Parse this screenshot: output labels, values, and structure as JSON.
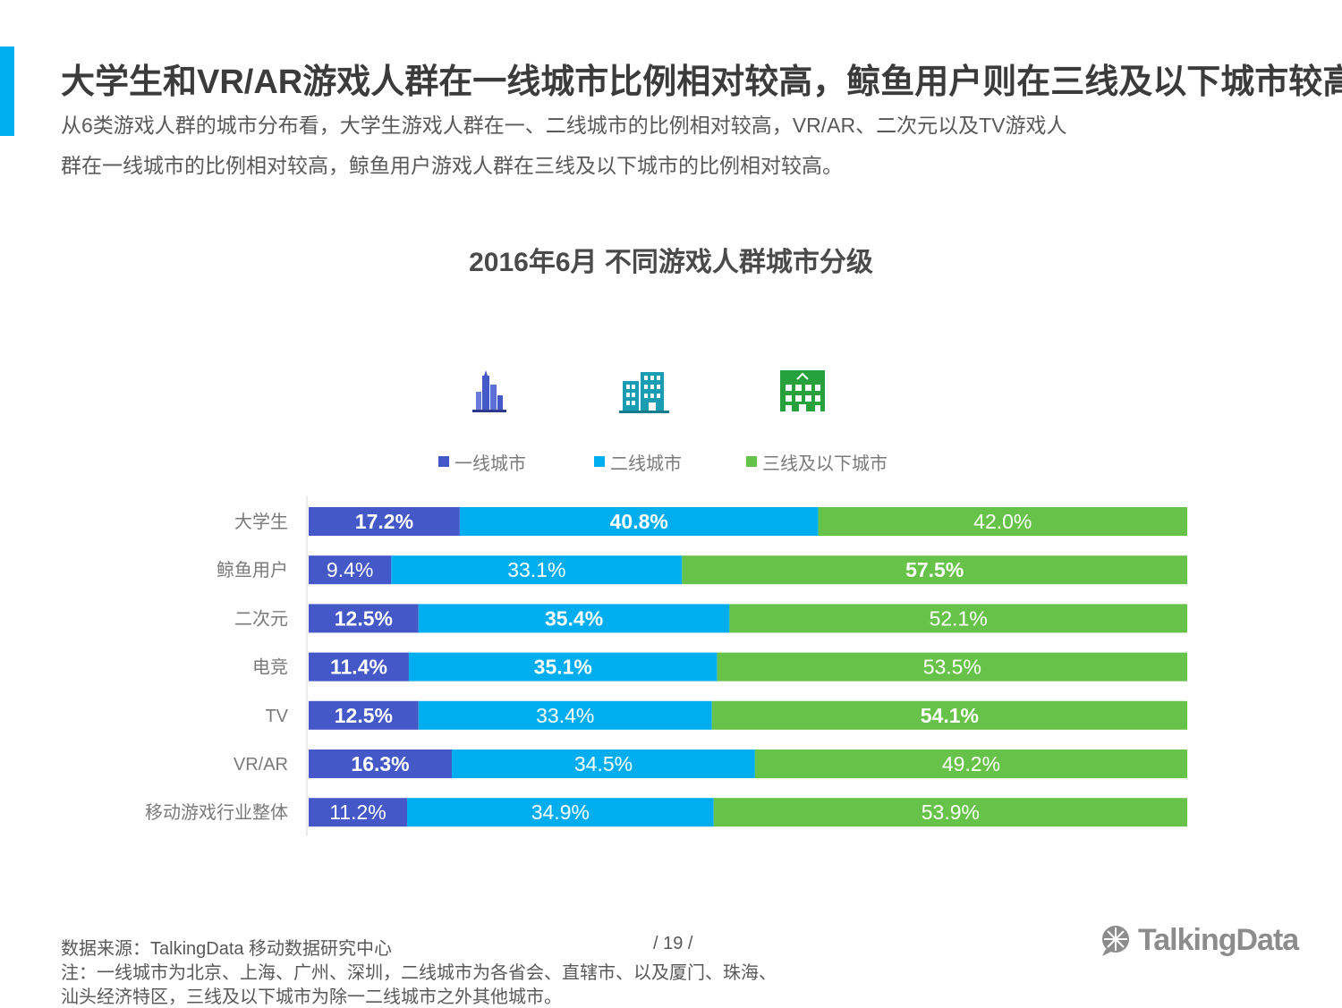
{
  "header": {
    "title": "大学生和VR/AR游戏人群在一线城市比例相对较高，鲸鱼用户则在三线及以下城市较高",
    "subtitle_line1": "从6类游戏人群的城市分布看，大学生游戏人群在一、二线城市的比例相对较高，VR/AR、二次元以及TV游戏人",
    "subtitle_line2": "群在一线城市的比例相对较高，鲸鱼用户游戏人群在三线及以下城市的比例相对较高。"
  },
  "icons": [
    {
      "name": "tier1-city-icon",
      "color": "#4458c7"
    },
    {
      "name": "tier2-city-icon",
      "color": "#1a9db3"
    },
    {
      "name": "tier3-city-icon",
      "color": "#27a13b"
    }
  ],
  "colors": {
    "tier1": "#4458c7",
    "tier2": "#00aeef",
    "tier3": "#66c248",
    "accent": "#00aeef"
  },
  "chart_data": {
    "type": "bar",
    "orientation": "horizontal",
    "stacked": true,
    "title": "2016年6月 不同游戏人群城市分级",
    "categories": [
      "大学生",
      "鲸鱼用户",
      "二次元",
      "电竞",
      "TV",
      "VR/AR",
      "移动游戏行业整体"
    ],
    "series": [
      {
        "name": "一线城市",
        "values": [
          17.2,
          9.4,
          12.5,
          11.4,
          12.5,
          16.3,
          11.2
        ],
        "labels": [
          "17.2%",
          "9.4%",
          "12.5%",
          "11.4%",
          "12.5%",
          "16.3%",
          "11.2%"
        ],
        "bold": [
          true,
          false,
          true,
          true,
          true,
          true,
          false
        ]
      },
      {
        "name": "二线城市",
        "values": [
          40.8,
          33.1,
          35.4,
          35.1,
          33.4,
          34.5,
          34.9
        ],
        "labels": [
          "40.8%",
          "33.1%",
          "35.4%",
          "35.1%",
          "33.4%",
          "34.5%",
          "34.9%"
        ],
        "bold": [
          true,
          false,
          true,
          true,
          false,
          false,
          false
        ]
      },
      {
        "name": "三线及以下城市",
        "values": [
          42.0,
          57.5,
          52.1,
          53.5,
          54.1,
          49.2,
          53.9
        ],
        "labels": [
          "42.0%",
          "57.5%",
          "52.1%",
          "53.5%",
          "54.1%",
          "49.2%",
          "53.9%"
        ],
        "bold": [
          false,
          true,
          false,
          false,
          true,
          false,
          false
        ]
      }
    ],
    "xlim": [
      0,
      100
    ],
    "legend": "top"
  },
  "footer": {
    "source": "数据来源：TalkingData  移动数据研究中心",
    "page": "/  19  /",
    "note_line1": "注：一线城市为北京、上海、广州、深圳，二线城市为各省会、直辖市、以及厦门、珠海、",
    "note_line2": "汕头经济特区，三线及以下城市为除一二线城市之外其他城市。",
    "logo_text": "TalkingData"
  }
}
